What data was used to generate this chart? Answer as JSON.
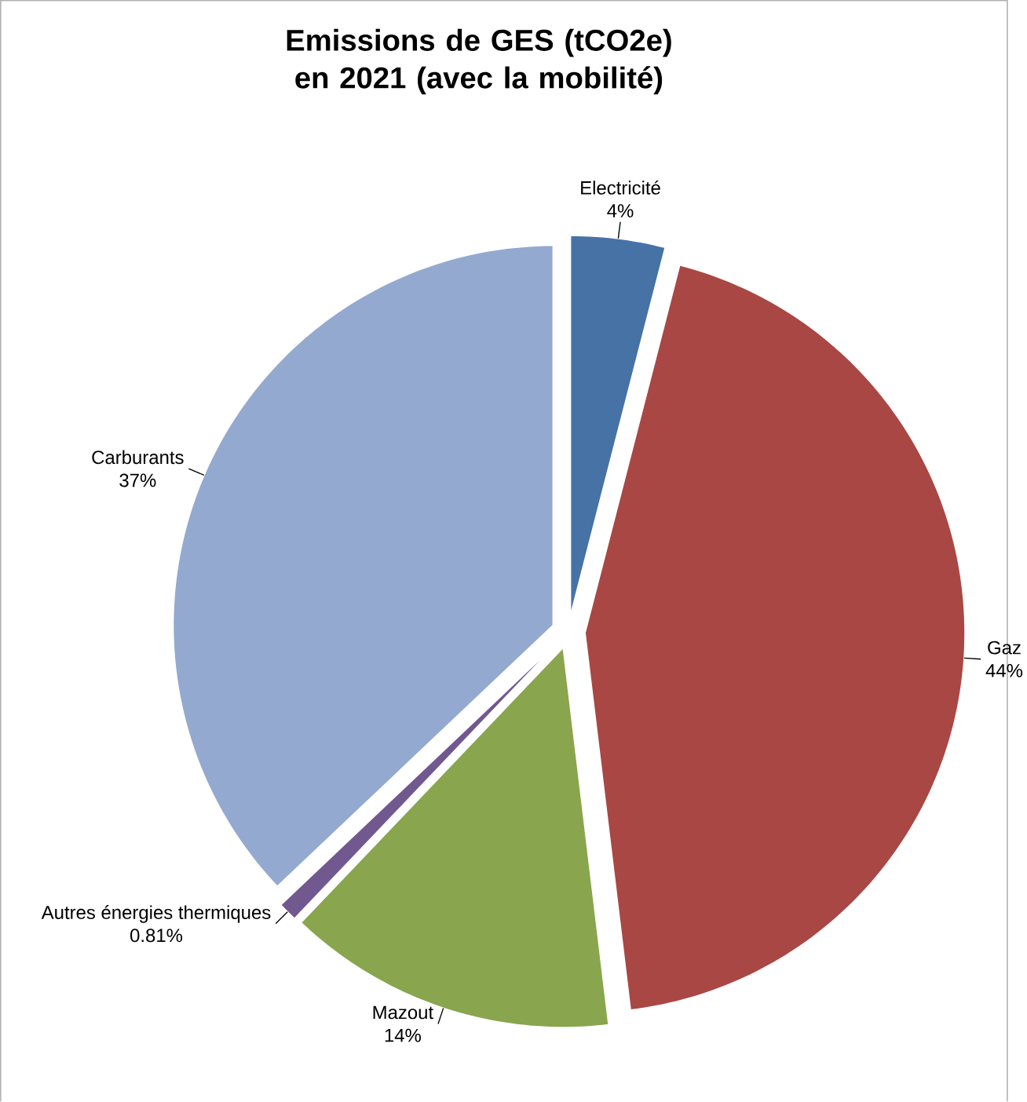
{
  "chart_data": {
    "type": "pie",
    "title": "Emissions de GES (tCO2e) en 2021 (avec la mobilité)",
    "categories": [
      "Electricité",
      "Gaz",
      "Mazout",
      "Autres énergies thermiques",
      "Carburants"
    ],
    "values": [
      4,
      44,
      14,
      0.81,
      37
    ],
    "value_labels": [
      "4%",
      "44%",
      "14%",
      "0.81%",
      "37%"
    ],
    "colors": [
      "#4672a6",
      "#a94744",
      "#89a54e",
      "#71588f",
      "#94a9cf"
    ]
  }
}
